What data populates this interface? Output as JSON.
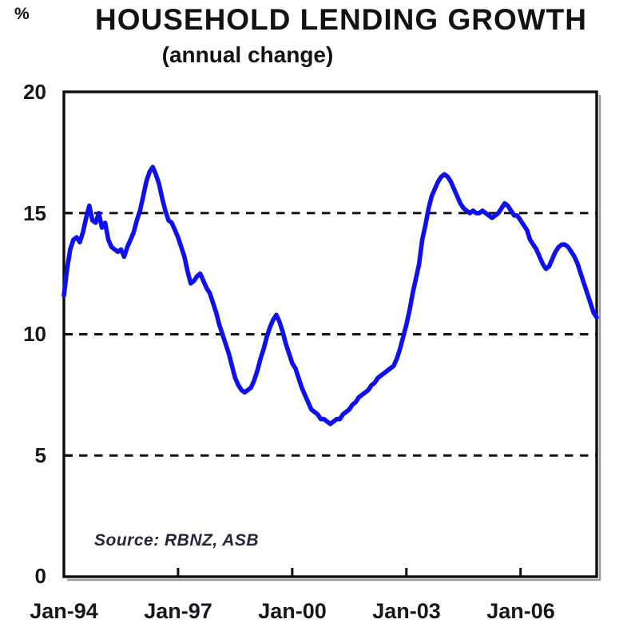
{
  "header": {
    "unit_label": "%",
    "title": "HOUSEHOLD LENDING GROWTH",
    "subtitle": "(annual change)"
  },
  "axes": {
    "y_tick_labels": [
      "20",
      "15",
      "10",
      "5",
      "0"
    ],
    "x_tick_labels": [
      "Jan-94",
      "Jan-97",
      "Jan-00",
      "Jan-03",
      "Jan-06"
    ]
  },
  "source_note": "Source: RBNZ, ASB",
  "colors": {
    "line": "#0f10ee",
    "axis": "#0d0d0d",
    "grid": "#141414",
    "text": "#121212",
    "background": "#ffffff"
  },
  "chart_data": {
    "type": "line",
    "title": "HOUSEHOLD LENDING GROWTH",
    "subtitle": "(annual change)",
    "xlabel": "",
    "ylabel": "%",
    "ylim": [
      0,
      20
    ],
    "y_ticks": [
      0,
      5,
      10,
      15,
      20
    ],
    "gridlines_at": [
      5,
      10,
      15
    ],
    "gridline_style": "dashed-horizontal",
    "legend_position": "none",
    "source": "Source: RBNZ, ASB",
    "x_axis": {
      "start": "Jan-1994",
      "end": "Jan-2008",
      "interval": "monthly",
      "total_points": 169,
      "tick_labels": [
        "Jan-94",
        "Jan-97",
        "Jan-00",
        "Jan-03",
        "Jan-06"
      ],
      "tick_month_index": [
        0,
        36,
        72,
        108,
        144
      ]
    },
    "series": [
      {
        "name": "Household lending growth (annual % change)",
        "color": "#0f10ee",
        "values": [
          11.6,
          12.7,
          13.5,
          13.9,
          14.0,
          13.8,
          14.2,
          14.8,
          15.3,
          14.7,
          14.6,
          15.0,
          14.4,
          14.6,
          13.9,
          13.6,
          13.5,
          13.4,
          13.5,
          13.2,
          13.6,
          13.9,
          14.2,
          14.7,
          15.1,
          15.7,
          16.3,
          16.7,
          16.9,
          16.6,
          16.2,
          15.6,
          15.1,
          14.7,
          14.6,
          14.3,
          14.0,
          13.6,
          13.2,
          12.6,
          12.1,
          12.2,
          12.4,
          12.5,
          12.2,
          11.9,
          11.7,
          11.3,
          10.9,
          10.4,
          10.0,
          9.6,
          9.2,
          8.7,
          8.2,
          7.9,
          7.7,
          7.6,
          7.7,
          7.8,
          8.1,
          8.5,
          9.0,
          9.4,
          9.9,
          10.3,
          10.6,
          10.8,
          10.5,
          10.1,
          9.6,
          9.2,
          8.8,
          8.6,
          8.2,
          7.8,
          7.5,
          7.2,
          6.9,
          6.8,
          6.7,
          6.5,
          6.5,
          6.4,
          6.3,
          6.4,
          6.5,
          6.5,
          6.7,
          6.8,
          6.9,
          7.1,
          7.2,
          7.4,
          7.5,
          7.6,
          7.7,
          7.9,
          8.0,
          8.2,
          8.3,
          8.4,
          8.5,
          8.6,
          8.7,
          9.0,
          9.4,
          9.9,
          10.4,
          11.0,
          11.7,
          12.3,
          12.9,
          13.9,
          14.5,
          15.2,
          15.7,
          16.0,
          16.3,
          16.5,
          16.6,
          16.5,
          16.3,
          16.0,
          15.7,
          15.4,
          15.2,
          15.1,
          15.0,
          15.1,
          15.0,
          15.0,
          15.1,
          15.0,
          14.9,
          14.8,
          14.9,
          15.0,
          15.2,
          15.4,
          15.3,
          15.1,
          14.9,
          14.9,
          14.7,
          14.5,
          14.3,
          13.9,
          13.7,
          13.5,
          13.2,
          12.9,
          12.7,
          12.8,
          13.1,
          13.4,
          13.6,
          13.7,
          13.7,
          13.6,
          13.4,
          13.2,
          12.9,
          12.5,
          12.1,
          11.7,
          11.3,
          10.9,
          10.7
        ]
      }
    ]
  }
}
